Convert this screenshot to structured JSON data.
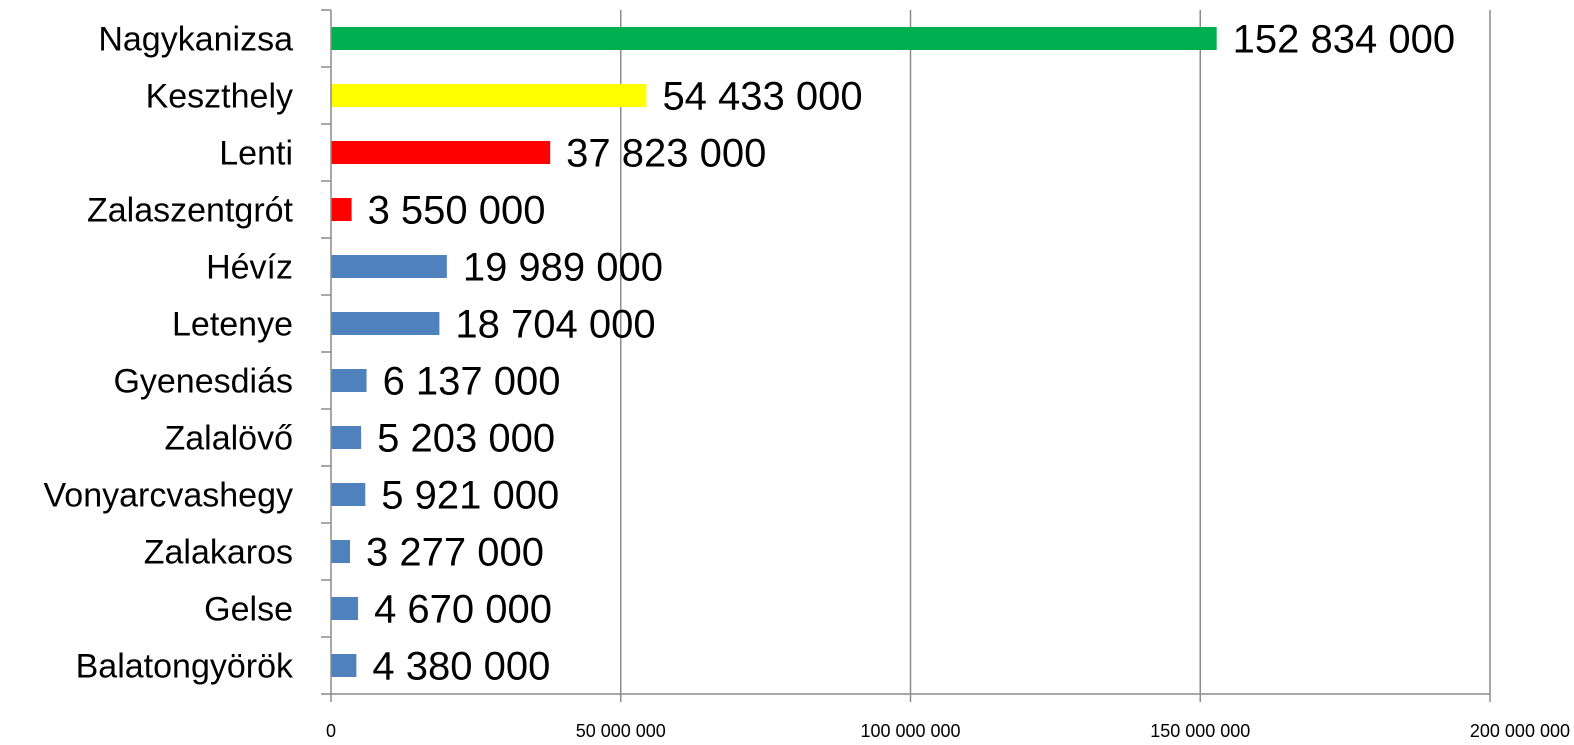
{
  "chart_data": {
    "type": "bar",
    "orientation": "horizontal",
    "title": "",
    "xlabel": "",
    "ylabel": "",
    "xlim": [
      0,
      200000000
    ],
    "grid": true,
    "legend": "none",
    "categories": [
      "Nagykanizsa",
      "Keszthely",
      "Lenti",
      "Zalaszentgrót",
      "Hévíz",
      "Letenye",
      "Gyenesdiás",
      "Zalalövő",
      "Vonyarcvashegy",
      "Zalakaros",
      "Gelse",
      "Balatongyörök"
    ],
    "values": [
      152834000,
      54433000,
      37823000,
      3550000,
      19989000,
      18704000,
      6137000,
      5203000,
      5921000,
      3277000,
      4670000,
      4380000
    ],
    "value_labels": [
      "152 834 000",
      "54 433 000",
      "37 823 000",
      "3 550 000",
      "19 989 000",
      "18 704 000",
      "6 137 000",
      "5 203 000",
      "5 921 000",
      "3 277 000",
      "4 670 000",
      "4 380 000"
    ],
    "bar_colors": [
      "#00b050",
      "#ffff00",
      "#ff0000",
      "#ff0000",
      "#4f81bd",
      "#4f81bd",
      "#4f81bd",
      "#4f81bd",
      "#4f81bd",
      "#4f81bd",
      "#4f81bd",
      "#4f81bd"
    ],
    "x_ticks": [
      0,
      50000000,
      100000000,
      150000000,
      200000000
    ],
    "x_tick_labels": [
      "0",
      "50 000 000",
      "100 000 000",
      "150 000 000",
      "200 000 000"
    ]
  }
}
